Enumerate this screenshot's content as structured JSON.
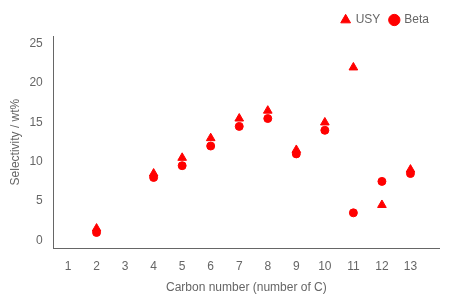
{
  "chart_data": {
    "type": "scatter",
    "xlabel": "Carbon number (number of C)",
    "ylabel": "Selectivity / wt%",
    "x": [
      2,
      4,
      5,
      6,
      7,
      8,
      9,
      10,
      11,
      12,
      13
    ],
    "series": [
      {
        "name": "USY",
        "color": "#ff0000",
        "marker": "triangle",
        "values": [
          1.5,
          8.5,
          10.5,
          13.0,
          15.5,
          16.5,
          11.5,
          15.0,
          22.0,
          4.5,
          9.0
        ]
      },
      {
        "name": "Beta",
        "color": "#ff0000",
        "marker": "circle",
        "values": [
          1.0,
          8.0,
          9.5,
          12.0,
          14.5,
          15.5,
          11.0,
          14.0,
          3.5,
          7.5,
          8.5
        ]
      }
    ],
    "xlim": [
      0.5,
      14
    ],
    "xticks": [
      1,
      2,
      3,
      4,
      5,
      6,
      7,
      8,
      9,
      10,
      11,
      12,
      13
    ],
    "ylim": [
      -1,
      26
    ],
    "yticks": [
      0,
      5,
      10,
      15,
      20,
      25
    ],
    "grid": false,
    "legend": "upper right"
  }
}
